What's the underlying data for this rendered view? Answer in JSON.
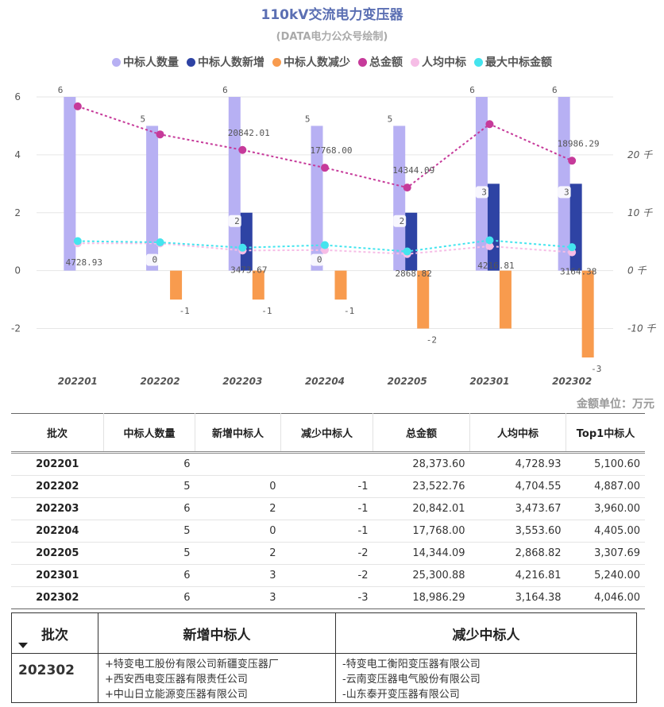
{
  "title": "110kV交流电力变压器",
  "subtitle": "(DATA电力公众号绘制)",
  "unit_label": "金额单位：万元",
  "colors": {
    "bidders": "#b7b0f3",
    "new": "#2e43a4",
    "reduced": "#f89b4e",
    "total": "#c63a9a",
    "avg": "#f6bde6",
    "max": "#44e4ee"
  },
  "chart_data": {
    "type": "bar",
    "categories": [
      "202201",
      "202202",
      "202203",
      "202204",
      "202205",
      "202301",
      "202302"
    ],
    "left_axis": {
      "ylim": [
        -3,
        6
      ],
      "ticks": [
        -2,
        0,
        2,
        4,
        6
      ]
    },
    "right_axis": {
      "ylim": [
        -15000,
        30000
      ],
      "ticks": [
        20000,
        10000,
        0,
        -10000
      ],
      "tick_labels": [
        "20 千",
        "10 千",
        "0 千",
        "-10 千"
      ]
    },
    "series": [
      {
        "name": "中标人数量",
        "type": "bar",
        "axis": "left",
        "values": [
          6,
          5,
          6,
          5,
          5,
          6,
          6
        ],
        "labels": [
          "6",
          "5",
          "6",
          "5",
          "5",
          "6",
          "6"
        ]
      },
      {
        "name": "中标人数新增",
        "type": "bar",
        "axis": "left",
        "values": [
          null,
          0,
          2,
          0,
          2,
          3,
          3
        ],
        "labels": [
          "",
          "0",
          "2",
          "0",
          "2",
          "3",
          "3"
        ]
      },
      {
        "name": "中标人数减少",
        "type": "bar",
        "axis": "left",
        "values": [
          null,
          -1,
          -1,
          -1,
          -2,
          -2,
          -3
        ],
        "labels": [
          "",
          "-1",
          "-1",
          "-1",
          "-2",
          "",
          "-3"
        ]
      },
      {
        "name": "总金额",
        "type": "line",
        "axis": "right",
        "values": [
          28373.6,
          23522.76,
          20842.01,
          17768.0,
          14344.09,
          25300.88,
          18986.29
        ],
        "labels": [
          "",
          "",
          "20842.01",
          "17768.00",
          "14344.09",
          "",
          "18986.29"
        ]
      },
      {
        "name": "人均中标",
        "type": "line",
        "axis": "right",
        "values": [
          4728.93,
          4704.55,
          3473.67,
          3553.6,
          2868.82,
          4216.81,
          3164.38
        ],
        "labels": [
          "4728.93",
          "",
          "3473.67",
          "",
          "2868.82",
          "4216.81",
          "3164.38"
        ]
      },
      {
        "name": "最大中标金额",
        "type": "line",
        "axis": "right",
        "values": [
          5100.6,
          4887.0,
          3960.0,
          4405.0,
          3307.69,
          5240.0,
          4046.0
        ],
        "labels": [
          "",
          "",
          "",
          "",
          "",
          "",
          ""
        ]
      }
    ]
  },
  "stats_table": {
    "headers": [
      "批次",
      "中标人数量",
      "新增中标人",
      "减少中标人",
      "总金额",
      "人均中标",
      "Top1中标人"
    ],
    "rows": [
      [
        "202201",
        "6",
        "",
        "",
        "28,373.60",
        "4,728.93",
        "5,100.60"
      ],
      [
        "202202",
        "5",
        "0",
        "-1",
        "23,522.76",
        "4,704.55",
        "4,887.00"
      ],
      [
        "202203",
        "6",
        "2",
        "-1",
        "20,842.01",
        "3,473.67",
        "3,960.00"
      ],
      [
        "202204",
        "5",
        "0",
        "-1",
        "17,768.00",
        "3,553.60",
        "4,405.00"
      ],
      [
        "202205",
        "5",
        "2",
        "-2",
        "14,344.09",
        "2,868.82",
        "3,307.69"
      ],
      [
        "202301",
        "6",
        "3",
        "-2",
        "25,300.88",
        "4,216.81",
        "5,240.00"
      ],
      [
        "202302",
        "6",
        "3",
        "-3",
        "18,986.29",
        "3,164.38",
        "4,046.00"
      ]
    ]
  },
  "detail_table": {
    "headers": [
      "批次",
      "新增中标人",
      "减少中标人"
    ],
    "batch": "202302",
    "added": [
      "+特变电工股份有限公司新疆变压器厂",
      "+西安西电变压器有限责任公司",
      "+中山日立能源变压器有限公司"
    ],
    "removed": [
      "-特变电工衡阳变压器有限公司",
      "-云南变压器电气股份有限公司",
      "-山东泰开变压器有限公司"
    ]
  }
}
